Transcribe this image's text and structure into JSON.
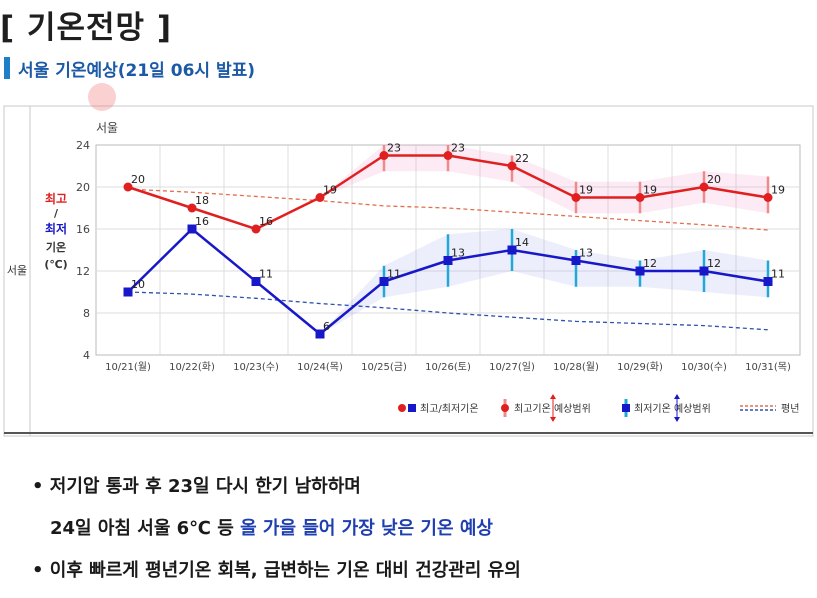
{
  "page": {
    "title": "[ 기온전망 ]",
    "subtitle": "서울 기온예상(21일 06시 발표)"
  },
  "chart_data": {
    "type": "line",
    "region_label": "서울",
    "row_label": "서울",
    "ylabel_max": "최고",
    "ylabel_slash": "/",
    "ylabel_min": "최저",
    "ylabel_temp": "기온",
    "ylabel_unit": "(℃)",
    "categories": [
      "10/21(월)",
      "10/22(화)",
      "10/23(수)",
      "10/24(목)",
      "10/25(금)",
      "10/26(토)",
      "10/27(일)",
      "10/28(월)",
      "10/29(화)",
      "10/30(수)",
      "10/31(목)"
    ],
    "ylim": [
      4,
      24
    ],
    "yticks": [
      "4",
      "8",
      "12",
      "16",
      "20",
      "24"
    ],
    "grid": true,
    "legend_position": "bottom-right",
    "series": [
      {
        "name": "최고/최저기온",
        "role": "max",
        "color": "#e02020",
        "values": [
          20,
          18,
          16,
          19,
          23,
          23,
          22,
          19,
          19,
          20,
          19
        ],
        "range_low": [
          null,
          null,
          null,
          null,
          21.5,
          21.5,
          20.5,
          17.5,
          17.5,
          18.5,
          17.5
        ],
        "range_high": [
          null,
          null,
          null,
          null,
          24,
          24,
          23,
          20.5,
          20.5,
          21.5,
          21
        ]
      },
      {
        "name": "최고/최저기온",
        "role": "min",
        "color": "#1818c8",
        "values": [
          10,
          16,
          11,
          6,
          11,
          13,
          14,
          13,
          12,
          12,
          11
        ],
        "range_low": [
          null,
          null,
          null,
          null,
          9.5,
          10.5,
          12,
          10.5,
          10.5,
          10,
          9.5
        ],
        "range_high": [
          null,
          null,
          null,
          null,
          12.5,
          15.5,
          16,
          14,
          13,
          14,
          13
        ]
      },
      {
        "name": "평년",
        "role": "normal-max",
        "color": "#e07050",
        "values": [
          19.8,
          19.5,
          19.1,
          18.7,
          18.2,
          18,
          17.6,
          17.2,
          16.8,
          16.4,
          15.9
        ]
      },
      {
        "name": "평년",
        "role": "normal-min",
        "color": "#3050b0",
        "values": [
          10,
          9.8,
          9.4,
          8.9,
          8.5,
          8,
          7.6,
          7.2,
          7,
          6.8,
          6.4
        ]
      }
    ],
    "legend": {
      "item1": "최고/최저기온",
      "item2": "최고기온 예상범위",
      "item3": "최저기온 예상범위",
      "item4": "평년"
    }
  },
  "bullets": {
    "b1": "저기압 통과 후 23일 다시 한기 남하하며",
    "b2_prefix": "24일 아침 서울 6℃ 등 ",
    "b2_highlight": "올 가을 들어 가장 낮은 기온 예상",
    "b3": "이후 빠르게 평년기온 회복, 급변하는 기온 대비 건강관리 유의"
  },
  "colors": {
    "accent": "#1e7ec8",
    "subtitle": "#1c5aa6",
    "max_line": "#e02020",
    "min_line": "#1818c8",
    "highlight": "#1f3fb0"
  }
}
